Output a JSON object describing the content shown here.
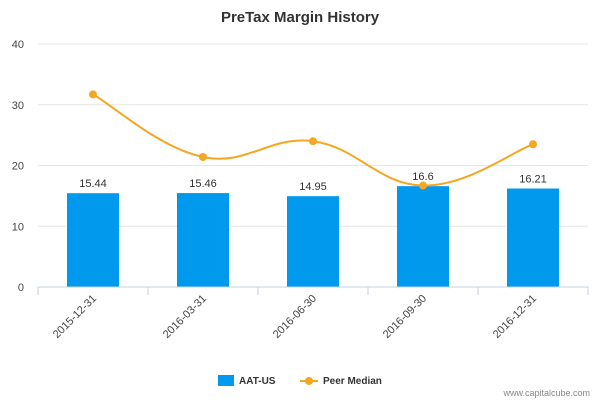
{
  "chart_data": {
    "type": "bar",
    "title": "PreTax Margin History",
    "categories": [
      "2015-12-31",
      "2016-03-31",
      "2016-06-30",
      "2016-09-30",
      "2016-12-31"
    ],
    "series": [
      {
        "name": "AAT-US",
        "type": "bar",
        "values": [
          15.44,
          15.46,
          14.95,
          16.6,
          16.21
        ],
        "data_labels": [
          "15.44",
          "15.46",
          "14.95",
          "16.6",
          "16.21"
        ],
        "color": "#0099ee"
      },
      {
        "name": "Peer Median",
        "type": "line",
        "values": [
          31.7,
          21.4,
          24.0,
          16.7,
          23.5
        ],
        "color": "#f5a623"
      }
    ],
    "yticks": [
      "0",
      "10",
      "20",
      "30",
      "40"
    ],
    "ylim": [
      0,
      40
    ],
    "legend_position": "bottom-center"
  },
  "credit": "www.capitalcube.com"
}
